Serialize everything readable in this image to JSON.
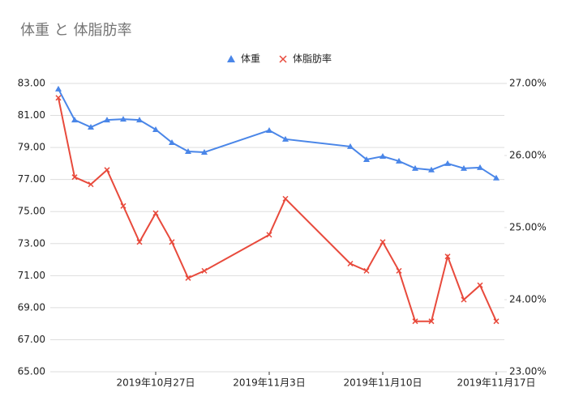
{
  "chart_data": {
    "type": "line",
    "title": "体重 と 体脂肪率",
    "x": [
      "2019-10-21",
      "2019-10-22",
      "2019-10-23",
      "2019-10-24",
      "2019-10-25",
      "2019-10-26",
      "2019-10-27",
      "2019-10-28",
      "2019-10-29",
      "2019-10-30",
      "2019-11-03",
      "2019-11-04",
      "2019-11-08",
      "2019-11-09",
      "2019-11-10",
      "2019-11-11",
      "2019-11-12",
      "2019-11-13",
      "2019-11-14",
      "2019-11-15",
      "2019-11-16",
      "2019-11-17"
    ],
    "series": [
      {
        "name": "体重",
        "color": "#4a86e8",
        "marker": "triangle",
        "values": [
          82.65,
          80.72,
          80.27,
          80.72,
          80.77,
          80.72,
          80.12,
          79.31,
          78.75,
          78.7,
          80.07,
          79.52,
          79.06,
          78.25,
          78.45,
          78.15,
          77.7,
          77.6,
          78.0,
          77.7,
          77.75,
          77.1
        ]
      },
      {
        "name": "体脂肪率",
        "color": "#e84a3c",
        "marker": "x",
        "axis": "y2",
        "values": [
          26.8,
          25.7,
          25.6,
          25.8,
          25.3,
          24.8,
          25.2,
          24.8,
          24.3,
          24.4,
          24.9,
          25.4,
          24.5,
          24.4,
          24.8,
          24.4,
          23.7,
          23.7,
          24.6,
          24.0,
          24.2,
          23.7
        ]
      }
    ],
    "xlim": [
      "2019-10-20T12:00Z",
      "2019-11-17T12:00Z"
    ],
    "xticks": [
      {
        "value": "2019-10-27",
        "label": "2019年10月27日"
      },
      {
        "value": "2019-11-03",
        "label": "2019年11月3日"
      },
      {
        "value": "2019-11-10",
        "label": "2019年11月10日"
      },
      {
        "value": "2019-11-17",
        "label": "2019年11月17日"
      }
    ],
    "ylim": [
      65,
      83
    ],
    "yticks": [
      {
        "value": 65,
        "label": "65.00"
      },
      {
        "value": 67,
        "label": "67.00"
      },
      {
        "value": 69,
        "label": "69.00"
      },
      {
        "value": 71,
        "label": "71.00"
      },
      {
        "value": 73,
        "label": "73.00"
      },
      {
        "value": 75,
        "label": "75.00"
      },
      {
        "value": 77,
        "label": "77.00"
      },
      {
        "value": 79,
        "label": "79.00"
      },
      {
        "value": 81,
        "label": "81.00"
      },
      {
        "value": 83,
        "label": "83.00"
      }
    ],
    "y2lim": [
      23,
      27
    ],
    "y2ticks": [
      {
        "value": 23,
        "label": "23.00%"
      },
      {
        "value": 24,
        "label": "24.00%"
      },
      {
        "value": 25,
        "label": "25.00%"
      },
      {
        "value": 26,
        "label": "26.00%"
      },
      {
        "value": 27,
        "label": "27.00%"
      }
    ],
    "grid": true,
    "legend": "top"
  }
}
